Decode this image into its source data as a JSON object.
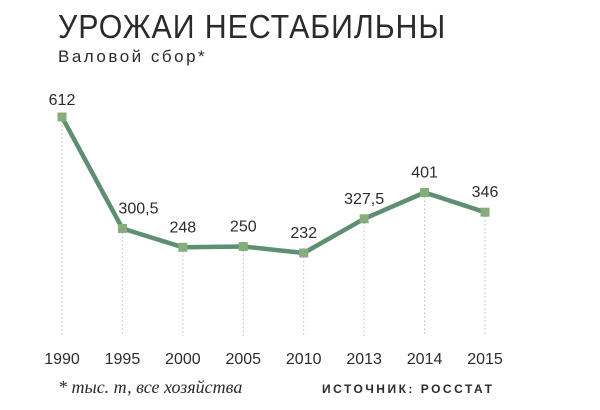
{
  "chart_data": {
    "type": "line",
    "title": "УРОЖАИ НЕСТАБИЛЬНЫ",
    "subtitle": "Валовой сбор*",
    "categories": [
      "1990",
      "1995",
      "2000",
      "2005",
      "2010",
      "2013",
      "2014",
      "2015"
    ],
    "series": [
      {
        "values": [
          612,
          300.5,
          248,
          250,
          232,
          327.5,
          401,
          346
        ],
        "labels": [
          "612",
          "300,5",
          "248",
          "250",
          "232",
          "327,5",
          "401",
          "346"
        ]
      }
    ],
    "ylim": [
      0,
      650
    ],
    "grid": "dotted vertical lines at each category",
    "colors": {
      "line": "#5f8f73",
      "marker": "#86ad7c",
      "text": "#2b2b2b",
      "grid": "#bdbdbd"
    },
    "footnote": "* тыс. т, все хозяйства",
    "source": "ИСТОЧНИК: РОССТАТ"
  }
}
